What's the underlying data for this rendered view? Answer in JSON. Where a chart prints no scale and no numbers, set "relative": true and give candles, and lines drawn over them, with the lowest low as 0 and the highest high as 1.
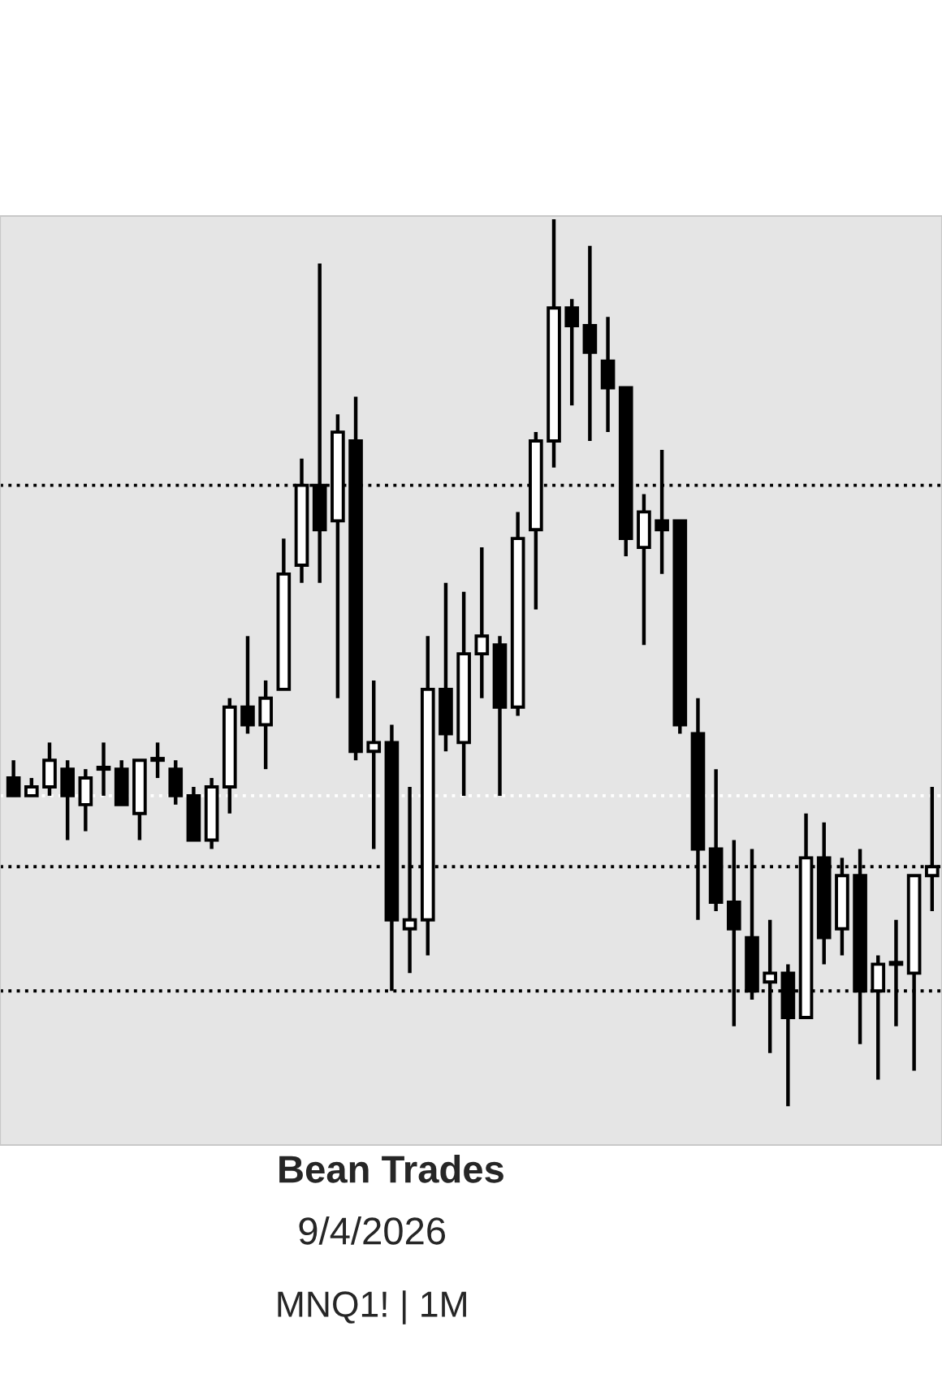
{
  "chart_data": {
    "type": "candlestick",
    "relative": true,
    "title": "Bean Trades",
    "subtitle": "9/4/2026",
    "annotations": [
      "MNQ1! | 1M"
    ],
    "categories": [
      null,
      null,
      null,
      null,
      null,
      null,
      null,
      null,
      null,
      null,
      null,
      null,
      null,
      null,
      null,
      null,
      null,
      null,
      null,
      null,
      null,
      null,
      null,
      null,
      null,
      null,
      null,
      null,
      null,
      null,
      null,
      null,
      null,
      null,
      null,
      null,
      null,
      null,
      null,
      null,
      null,
      null,
      null,
      null,
      null,
      null,
      null,
      null,
      null,
      null,
      null,
      null
    ],
    "ohlc": [
      [
        0.37,
        0.39,
        0.35,
        0.35
      ],
      [
        0.35,
        0.37,
        0.35,
        0.36
      ],
      [
        0.36,
        0.41,
        0.35,
        0.39
      ],
      [
        0.38,
        0.39,
        0.3,
        0.35
      ],
      [
        0.34,
        0.38,
        0.31,
        0.37
      ],
      [
        0.38,
        0.41,
        0.35,
        0.38
      ],
      [
        0.38,
        0.39,
        0.34,
        0.34
      ],
      [
        0.33,
        0.39,
        0.3,
        0.39
      ],
      [
        0.39,
        0.41,
        0.37,
        0.39
      ],
      [
        0.38,
        0.39,
        0.34,
        0.35
      ],
      [
        0.35,
        0.36,
        0.3,
        0.3
      ],
      [
        0.3,
        0.37,
        0.29,
        0.36
      ],
      [
        0.36,
        0.46,
        0.33,
        0.45
      ],
      [
        0.45,
        0.53,
        0.42,
        0.43
      ],
      [
        0.43,
        0.48,
        0.38,
        0.46
      ],
      [
        0.47,
        0.64,
        0.47,
        0.6
      ],
      [
        0.61,
        0.73,
        0.59,
        0.7
      ],
      [
        0.7,
        0.95,
        0.59,
        0.65
      ],
      [
        0.66,
        0.78,
        0.46,
        0.76
      ],
      [
        0.75,
        0.8,
        0.39,
        0.4
      ],
      [
        0.4,
        0.48,
        0.29,
        0.41
      ],
      [
        0.41,
        0.43,
        0.13,
        0.21
      ],
      [
        0.2,
        0.36,
        0.15,
        0.21
      ],
      [
        0.21,
        0.53,
        0.17,
        0.47
      ],
      [
        0.47,
        0.59,
        0.4,
        0.42
      ],
      [
        0.41,
        0.58,
        0.35,
        0.51
      ],
      [
        0.51,
        0.63,
        0.46,
        0.53
      ],
      [
        0.52,
        0.53,
        0.35,
        0.45
      ],
      [
        0.45,
        0.67,
        0.44,
        0.64
      ],
      [
        0.65,
        0.76,
        0.56,
        0.75
      ],
      [
        0.75,
        1.0,
        0.72,
        0.9
      ],
      [
        0.9,
        0.91,
        0.79,
        0.88
      ],
      [
        0.88,
        0.97,
        0.75,
        0.85
      ],
      [
        0.84,
        0.89,
        0.76,
        0.81
      ],
      [
        0.81,
        0.81,
        0.62,
        0.64
      ],
      [
        0.63,
        0.69,
        0.52,
        0.67
      ],
      [
        0.66,
        0.74,
        0.6,
        0.65
      ],
      [
        0.66,
        0.66,
        0.42,
        0.43
      ],
      [
        0.42,
        0.46,
        0.21,
        0.29
      ],
      [
        0.29,
        0.38,
        0.22,
        0.23
      ],
      [
        0.23,
        0.3,
        0.09,
        0.2
      ],
      [
        0.19,
        0.29,
        0.12,
        0.13
      ],
      [
        0.14,
        0.21,
        0.06,
        0.15
      ],
      [
        0.15,
        0.16,
        0.0,
        0.1
      ],
      [
        0.1,
        0.33,
        0.1,
        0.28
      ],
      [
        0.28,
        0.32,
        0.16,
        0.19
      ],
      [
        0.2,
        0.28,
        0.17,
        0.26
      ],
      [
        0.26,
        0.29,
        0.07,
        0.13
      ],
      [
        0.13,
        0.17,
        0.03,
        0.16
      ],
      [
        0.16,
        0.21,
        0.09,
        0.16
      ],
      [
        0.15,
        0.26,
        0.04,
        0.26
      ],
      [
        0.26,
        0.36,
        0.22,
        0.27
      ]
    ],
    "ref_lines": [
      {
        "axis": "y",
        "value": 0.7,
        "color": "#000000",
        "line_style": "dotted"
      },
      {
        "axis": "y",
        "value": 0.35,
        "color": "#ffffff",
        "line_style": "dotted"
      },
      {
        "axis": "y",
        "value": 0.27,
        "color": "#000000",
        "line_style": "dotted"
      },
      {
        "axis": "y",
        "value": 0.13,
        "color": "#000000",
        "line_style": "dotted"
      }
    ]
  }
}
